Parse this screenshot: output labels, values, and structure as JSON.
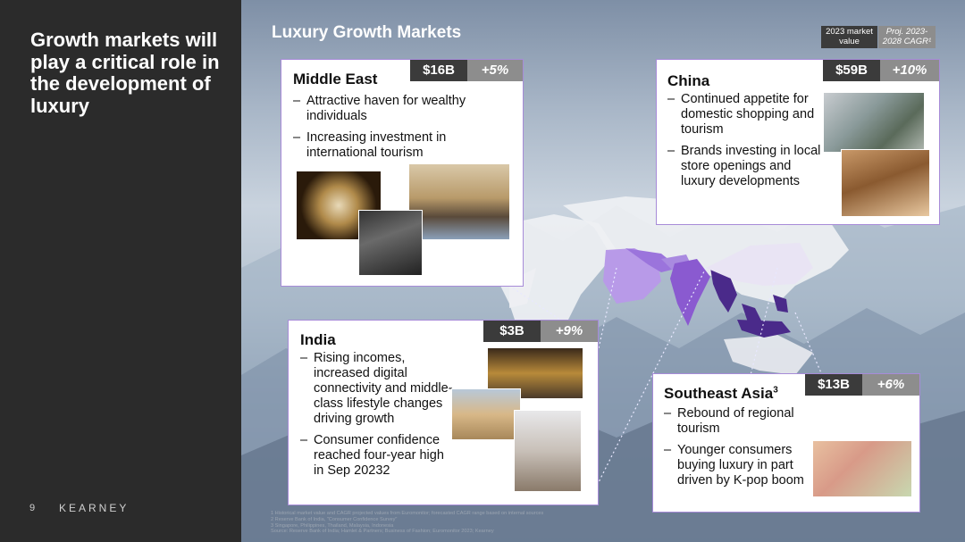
{
  "headline": "Growth markets will play a critical role in the development of luxury",
  "page_number": "9",
  "brand": "KEARNEY",
  "section_title": "Luxury Growth Markets",
  "legend": {
    "market_value": "2023 market value",
    "cagr": "Proj. 2023-2028 CAGR¹"
  },
  "regions": {
    "middle_east": {
      "title": "Middle East",
      "market_value": "$16B",
      "cagr": "+5%",
      "bullets": [
        "Attractive haven for wealthy individuals",
        "Increasing investment in international tourism"
      ]
    },
    "china": {
      "title": "China",
      "market_value": "$59B",
      "cagr": "+10%",
      "bullets": [
        "Continued appetite for domestic shopping and tourism",
        "Brands investing in local store openings and luxury developments"
      ]
    },
    "india": {
      "title": "India",
      "market_value": "$3B",
      "cagr": "+9%",
      "bullets": [
        "Rising incomes, increased digital connectivity and middle-class lifestyle changes driving growth",
        "Consumer confidence reached four-year high in Sep 20232"
      ]
    },
    "southeast_asia": {
      "title": "Southeast Asia",
      "title_sup": "3",
      "market_value": "$13B",
      "cagr": "+6%",
      "bullets": [
        "Rebound of regional tourism",
        "Younger consumers buying luxury in part driven by K-pop boom"
      ]
    }
  },
  "footnotes": [
    "1 Historical market value and CAGR projected values from Euromonitor; forecasted CAGR range based on internal sources",
    "2 Reserve Bank of India, \"Consumer Confidence Survey\"",
    "3 Singapore, Philippines, Thailand, Malaysia, Indonesia",
    "Source: Reserve Bank of India; Hamlet & Partners; Business of Fashion; Euromonitor 2023; Kearney"
  ],
  "colors": {
    "left_panel": "#2b2b2b",
    "card_border": "#a78bd8",
    "highlight_light": "#b89ae8",
    "highlight_mid": "#8a5ad0",
    "highlight_dark": "#4a2a8a",
    "market_value_bg": "#3b3b3b",
    "cagr_bg": "#8d8d8d"
  }
}
